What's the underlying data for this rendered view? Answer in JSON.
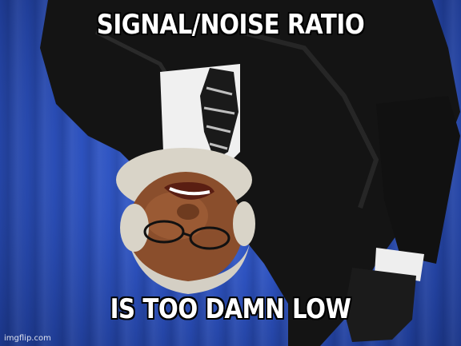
{
  "meme": {
    "top_text": "SIGNAL/NOISE RATIO",
    "bottom_text": "IS TOO DAMN LOW",
    "watermark": "imgflip.com"
  },
  "colors": {
    "background": "#2d52bf",
    "suit": "#151515",
    "shirt": "#f2f2f2",
    "skin": "#8a4e2c",
    "hair": "#d9d4c8",
    "caption_fill": "#ffffff",
    "caption_stroke": "#000000"
  }
}
